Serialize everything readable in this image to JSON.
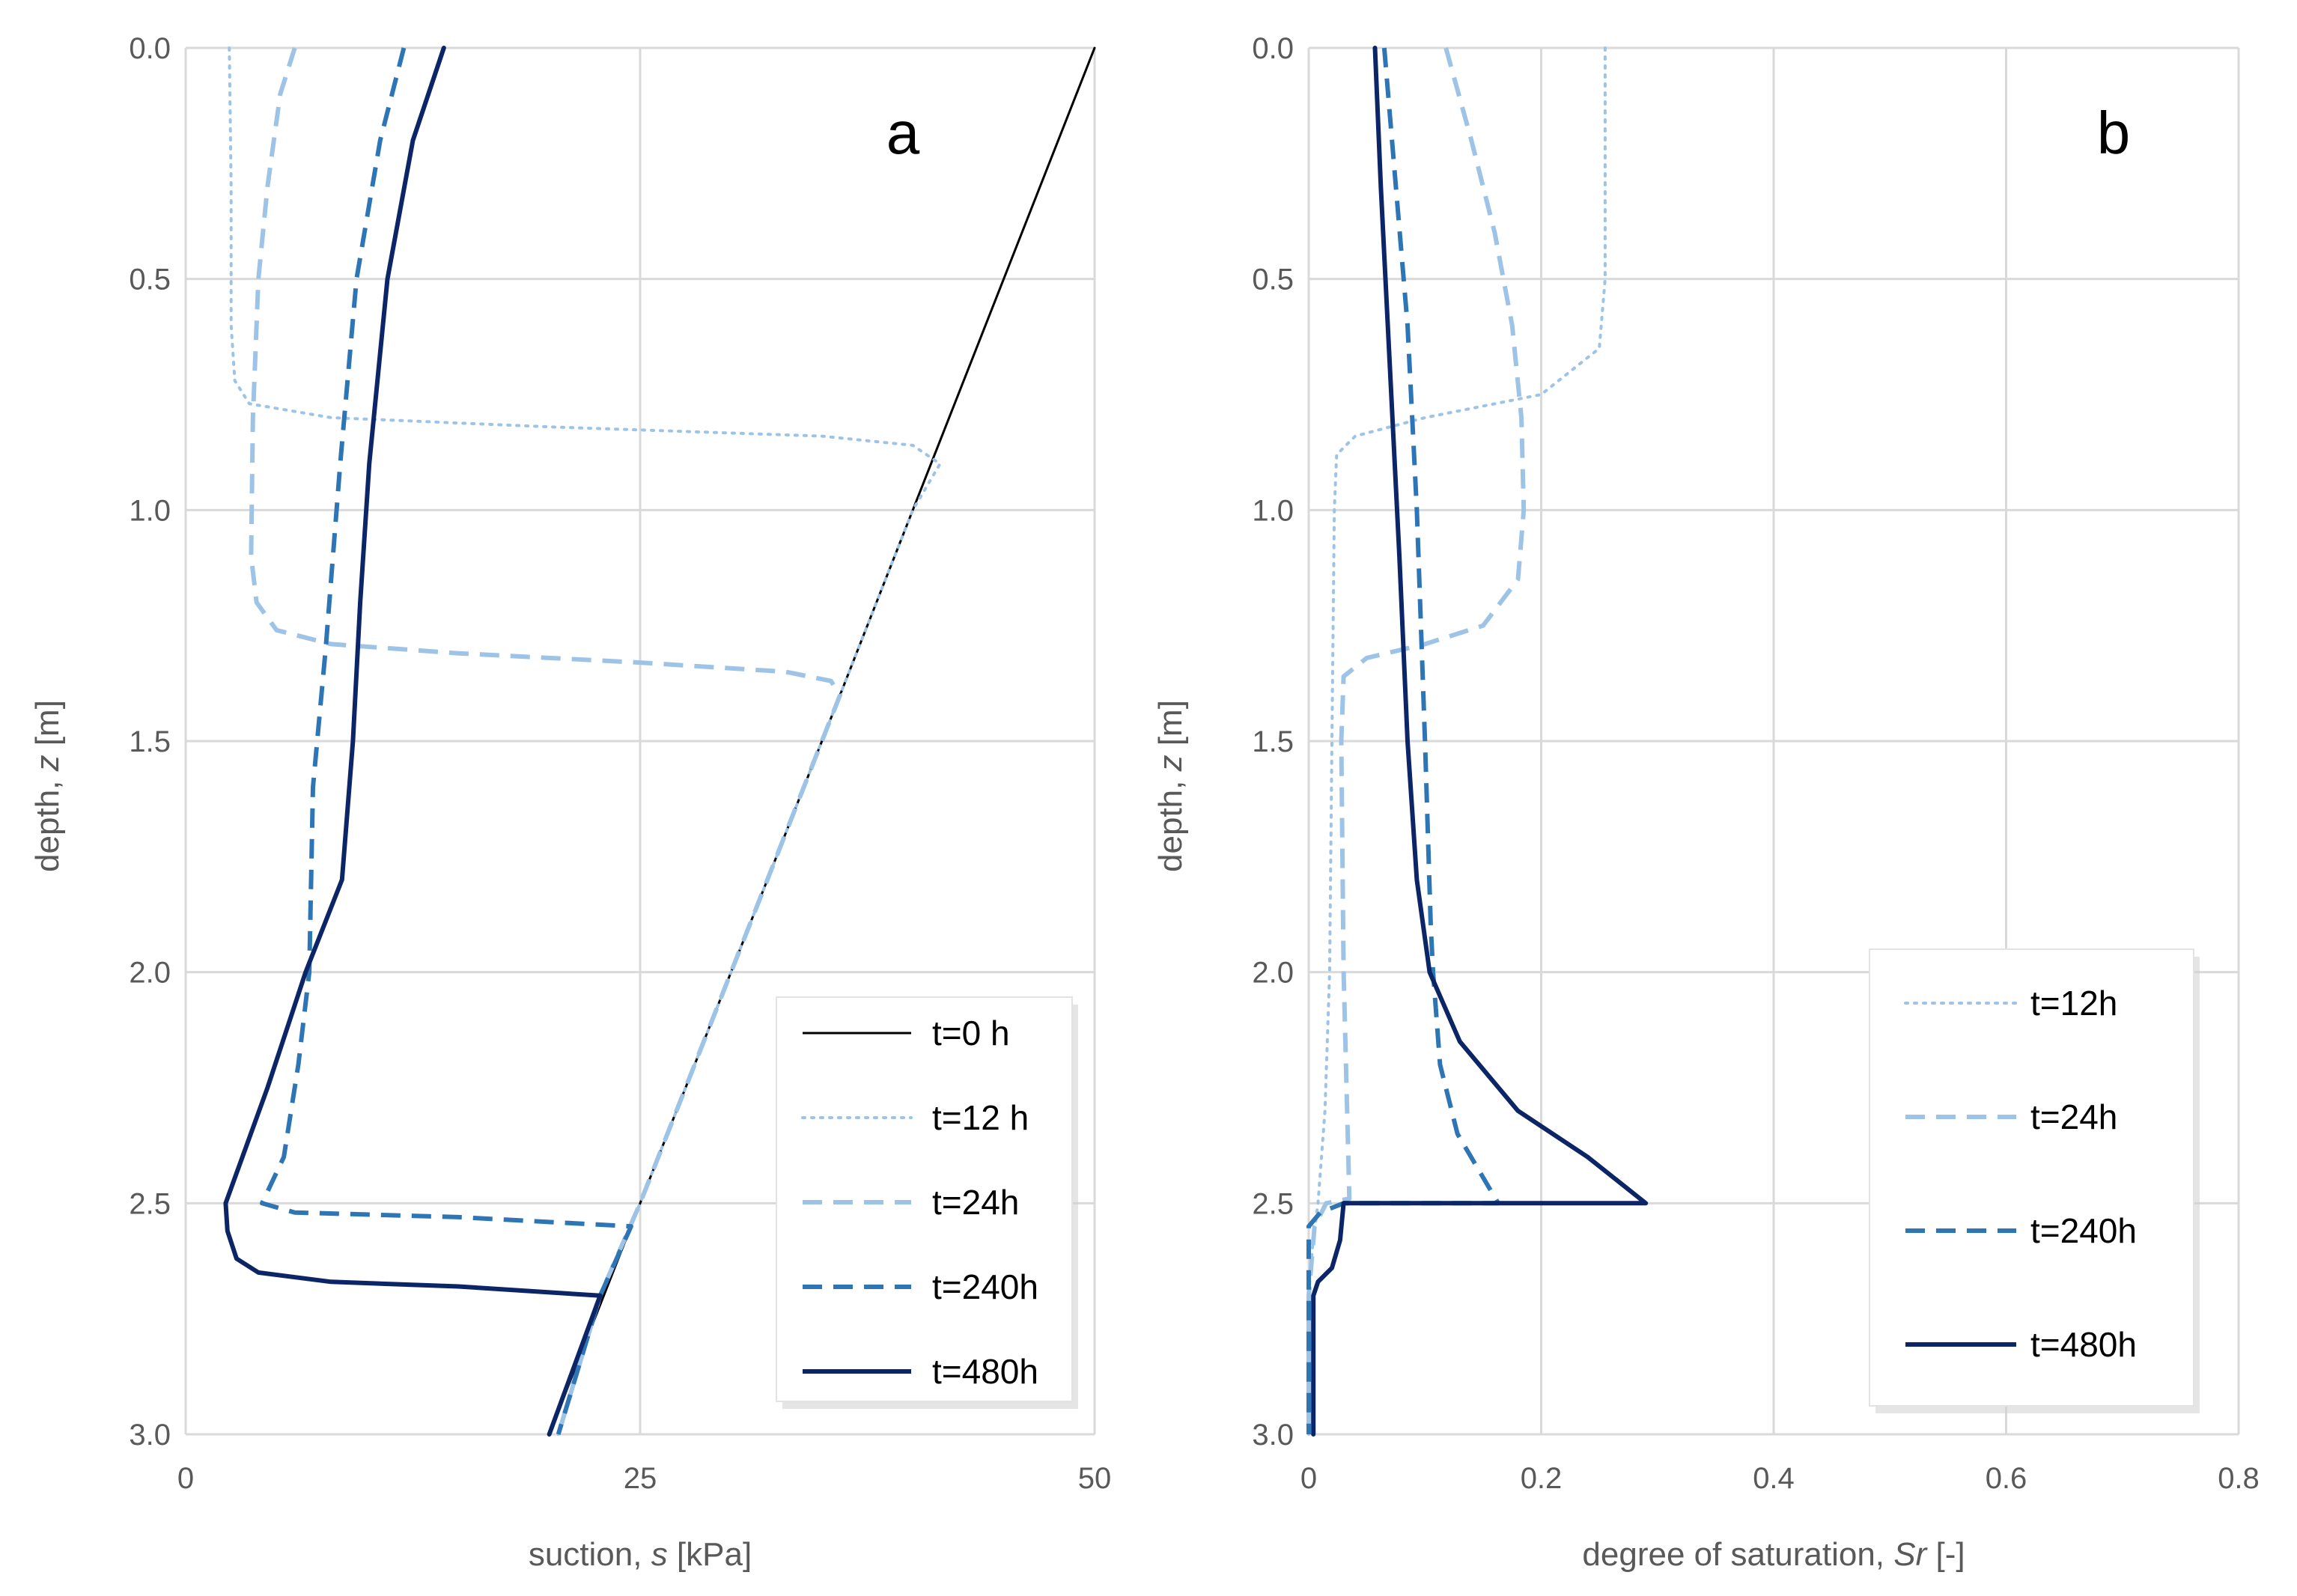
{
  "chart_data": [
    {
      "type": "line",
      "panel_label": "a",
      "xlabel_prefix": "suction, ",
      "xlabel_var": "s",
      "xlabel_suffix": " [kPa]",
      "ylabel_prefix": "depth, ",
      "ylabel_var": "z",
      "ylabel_suffix": " [m]",
      "xlim": [
        0,
        50
      ],
      "ylim": [
        0,
        3.0
      ],
      "y_inverted": true,
      "xticks": [
        0,
        25,
        50
      ],
      "xtick_labels": [
        "0",
        "25",
        "50"
      ],
      "yticks": [
        0,
        0.5,
        1.0,
        1.5,
        2.0,
        2.5,
        3.0
      ],
      "ytick_labels": [
        "0.0",
        "0.5",
        "1.0",
        "1.5",
        "2.0",
        "2.5",
        "3.0"
      ],
      "grid": true,
      "legend_position": "bottom-right",
      "series": [
        {
          "name": "t=0 h",
          "style": "solid-thin",
          "color": "#000000",
          "points": [
            [
              50,
              0
            ],
            [
              20,
              3.0
            ]
          ]
        },
        {
          "name": "t=12 h",
          "style": "dotted",
          "color": "#9dc3e6",
          "points": [
            [
              2.4,
              0
            ],
            [
              2.5,
              0.3
            ],
            [
              2.5,
              0.6
            ],
            [
              2.7,
              0.72
            ],
            [
              3.5,
              0.77
            ],
            [
              8,
              0.8
            ],
            [
              20,
              0.82
            ],
            [
              35,
              0.84
            ],
            [
              40,
              0.86
            ],
            [
              41.5,
              0.9
            ],
            [
              40,
              1.0
            ],
            [
              35,
              1.5
            ],
            [
              30,
              2.0
            ],
            [
              25,
              2.5
            ],
            [
              22.8,
              2.7
            ],
            [
              20.5,
              3.0
            ]
          ]
        },
        {
          "name": "t=24h",
          "style": "dashed",
          "color": "#9dc3e6",
          "points": [
            [
              6.0,
              0
            ],
            [
              5.2,
              0.1
            ],
            [
              4.5,
              0.3
            ],
            [
              4.0,
              0.5
            ],
            [
              3.7,
              0.8
            ],
            [
              3.6,
              1.1
            ],
            [
              3.9,
              1.2
            ],
            [
              5,
              1.26
            ],
            [
              8,
              1.29
            ],
            [
              15,
              1.31
            ],
            [
              25,
              1.33
            ],
            [
              33,
              1.35
            ],
            [
              35.5,
              1.37
            ],
            [
              36,
              1.4
            ],
            [
              35,
              1.5
            ],
            [
              30,
              2.0
            ],
            [
              25,
              2.5
            ],
            [
              22.8,
              2.7
            ],
            [
              20.5,
              3.0
            ]
          ]
        },
        {
          "name": "t=240h",
          "style": "dashed",
          "color": "#2e75b6",
          "points": [
            [
              12.0,
              0
            ],
            [
              10.7,
              0.2
            ],
            [
              9.4,
              0.5
            ],
            [
              8.5,
              0.9
            ],
            [
              7.7,
              1.3
            ],
            [
              7.0,
              1.6
            ],
            [
              6.8,
              2.0
            ],
            [
              6.2,
              2.2
            ],
            [
              5.4,
              2.4
            ],
            [
              4.2,
              2.5
            ],
            [
              6,
              2.52
            ],
            [
              15,
              2.53
            ],
            [
              24.5,
              2.55
            ],
            [
              22.8,
              2.7
            ],
            [
              20.5,
              3.0
            ]
          ]
        },
        {
          "name": "t=480h",
          "style": "solid",
          "color": "#0b2566",
          "points": [
            [
              14.2,
              0
            ],
            [
              12.5,
              0.2
            ],
            [
              11.1,
              0.5
            ],
            [
              10.1,
              0.9
            ],
            [
              9.6,
              1.2
            ],
            [
              9.2,
              1.5
            ],
            [
              8.6,
              1.8
            ],
            [
              6.6,
              2.0
            ],
            [
              4.5,
              2.25
            ],
            [
              2.2,
              2.5
            ],
            [
              2.3,
              2.56
            ],
            [
              2.8,
              2.62
            ],
            [
              4,
              2.65
            ],
            [
              8,
              2.67
            ],
            [
              15,
              2.68
            ],
            [
              22.8,
              2.7
            ],
            [
              20,
              3.0
            ]
          ]
        }
      ],
      "legend": [
        "t=0 h",
        "t=12 h",
        "t=24h",
        "t=240h",
        "t=480h"
      ]
    },
    {
      "type": "line",
      "panel_label": "b",
      "xlabel_prefix": "degree of saturation, ",
      "xlabel_var": "Sr",
      "xlabel_suffix": " [-]",
      "ylabel_prefix": "depth, ",
      "ylabel_var": "z",
      "ylabel_suffix": " [m]",
      "xlim": [
        0,
        0.8
      ],
      "ylim": [
        0,
        3.0
      ],
      "y_inverted": true,
      "xticks": [
        0,
        0.2,
        0.4,
        0.6,
        0.8
      ],
      "xtick_labels": [
        "0",
        "0.2",
        "0.4",
        "0.6",
        "0.8"
      ],
      "yticks": [
        0,
        0.5,
        1.0,
        1.5,
        2.0,
        2.5,
        3.0
      ],
      "ytick_labels": [
        "0.0",
        "0.5",
        "1.0",
        "1.5",
        "2.0",
        "2.5",
        "3.0"
      ],
      "grid": true,
      "legend_position": "bottom-right",
      "series": [
        {
          "name": "t=12h",
          "style": "dotted",
          "color": "#9dc3e6",
          "points": [
            [
              0.255,
              0
            ],
            [
              0.255,
              0.5
            ],
            [
              0.25,
              0.65
            ],
            [
              0.2,
              0.75
            ],
            [
              0.1,
              0.8
            ],
            [
              0.04,
              0.84
            ],
            [
              0.024,
              0.88
            ],
            [
              0.022,
              1.0
            ],
            [
              0.02,
              1.5
            ],
            [
              0.018,
              2.0
            ],
            [
              0.014,
              2.3
            ],
            [
              0.008,
              2.5
            ],
            [
              0.003,
              2.6
            ],
            [
              0.0,
              2.7
            ],
            [
              0.0,
              3.0
            ]
          ]
        },
        {
          "name": "t=24h",
          "style": "dashed",
          "color": "#9dc3e6",
          "points": [
            [
              0.118,
              0
            ],
            [
              0.14,
              0.2
            ],
            [
              0.16,
              0.4
            ],
            [
              0.175,
              0.6
            ],
            [
              0.183,
              0.8
            ],
            [
              0.185,
              1.0
            ],
            [
              0.18,
              1.15
            ],
            [
              0.15,
              1.25
            ],
            [
              0.1,
              1.29
            ],
            [
              0.05,
              1.32
            ],
            [
              0.03,
              1.36
            ],
            [
              0.028,
              1.5
            ],
            [
              0.03,
              2.0
            ],
            [
              0.035,
              2.49
            ],
            [
              0.015,
              2.5
            ],
            [
              0.005,
              2.55
            ],
            [
              0.0,
              2.7
            ],
            [
              0.0,
              3.0
            ]
          ]
        },
        {
          "name": "t=240h",
          "style": "dashed",
          "color": "#2e75b6",
          "points": [
            [
              0.065,
              0
            ],
            [
              0.075,
              0.3
            ],
            [
              0.085,
              0.6
            ],
            [
              0.093,
              1.0
            ],
            [
              0.1,
              1.5
            ],
            [
              0.105,
              1.9
            ],
            [
              0.107,
              2.0
            ],
            [
              0.113,
              2.2
            ],
            [
              0.128,
              2.35
            ],
            [
              0.163,
              2.5
            ],
            [
              0.03,
              2.5
            ],
            [
              0.01,
              2.52
            ],
            [
              0.0,
              2.55
            ],
            [
              0.0,
              3.0
            ]
          ]
        },
        {
          "name": "t=480h",
          "style": "solid",
          "color": "#0b2566",
          "points": [
            [
              0.057,
              0
            ],
            [
              0.062,
              0.3
            ],
            [
              0.07,
              0.7
            ],
            [
              0.078,
              1.1
            ],
            [
              0.085,
              1.5
            ],
            [
              0.093,
              1.8
            ],
            [
              0.104,
              2.0
            ],
            [
              0.13,
              2.15
            ],
            [
              0.18,
              2.3
            ],
            [
              0.24,
              2.4
            ],
            [
              0.29,
              2.5
            ],
            [
              0.03,
              2.5
            ],
            [
              0.027,
              2.58
            ],
            [
              0.02,
              2.64
            ],
            [
              0.008,
              2.67
            ],
            [
              0.004,
              2.7
            ],
            [
              0.004,
              3.0
            ]
          ]
        }
      ],
      "legend": [
        "t=12h",
        "t=24h",
        "t=240h",
        "t=480h"
      ]
    }
  ]
}
